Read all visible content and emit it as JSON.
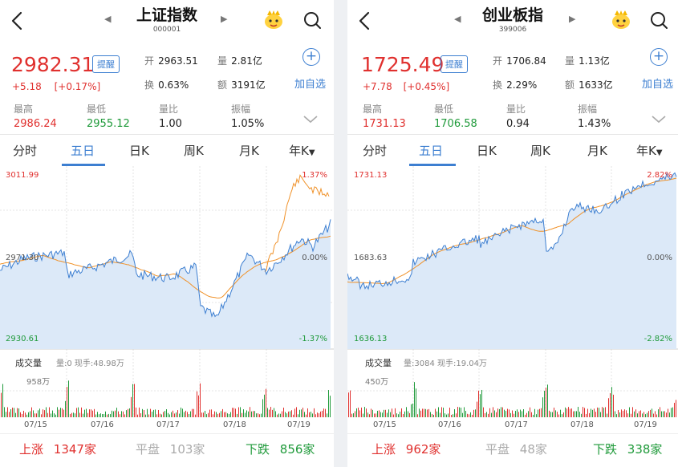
{
  "panels": [
    {
      "id": "sh",
      "title": "上证指数",
      "code": "000001",
      "price": "2982.31",
      "alert": "提醒",
      "change": "+5.18",
      "change_pct": "[+0.17%]",
      "stats": [
        {
          "k": "开",
          "v": "2963.51"
        },
        {
          "k": "量",
          "v": "2.81亿"
        },
        {
          "k": "换",
          "v": "0.63%"
        },
        {
          "k": "额",
          "v": "3191亿"
        }
      ],
      "add": "加自选",
      "plus": "+",
      "lows": [
        {
          "k": "最高",
          "v": "2986.24"
        },
        {
          "k": "最低",
          "v": "2955.12"
        },
        {
          "k": "量比",
          "v": "1.00"
        },
        {
          "k": "振幅",
          "v": "1.05%"
        }
      ],
      "tabs": [
        "分时",
        "五日",
        "日K",
        "周K",
        "月K",
        "年K"
      ],
      "active_tab": 1,
      "chart": {
        "y_max": "3011.99",
        "y_mid": "2971.30",
        "y_min": "2930.61",
        "pct_top": "1.37%",
        "pct_mid": "0.00%",
        "pct_bot": "-1.37%",
        "dates": [
          "07/15",
          "07/16",
          "07/17",
          "07/18",
          "07/19"
        ],
        "vol_max": "958万"
      },
      "vol_label": "成交量",
      "vol_info": "量:0 现手:48.98万",
      "breadth": {
        "up_k": "上涨",
        "up_v": "1347家",
        "flat_k": "平盘",
        "flat_v": "103家",
        "down_k": "下跌",
        "down_v": "856家"
      }
    },
    {
      "id": "cy",
      "title": "创业板指",
      "code": "399006",
      "price": "1725.49",
      "alert": "提醒",
      "change": "+7.78",
      "change_pct": "[+0.45%]",
      "stats": [
        {
          "k": "开",
          "v": "1706.84"
        },
        {
          "k": "量",
          "v": "1.13亿"
        },
        {
          "k": "换",
          "v": "2.29%"
        },
        {
          "k": "额",
          "v": "1633亿"
        }
      ],
      "add": "加自选",
      "plus": "+",
      "lows": [
        {
          "k": "最高",
          "v": "1731.13"
        },
        {
          "k": "最低",
          "v": "1706.58"
        },
        {
          "k": "量比",
          "v": "0.94"
        },
        {
          "k": "振幅",
          "v": "1.43%"
        }
      ],
      "tabs": [
        "分时",
        "五日",
        "日K",
        "周K",
        "月K",
        "年K"
      ],
      "active_tab": 1,
      "chart": {
        "y_max": "1731.13",
        "y_mid": "1683.63",
        "y_min": "1636.13",
        "pct_top": "2.82%",
        "pct_mid": "0.00%",
        "pct_bot": "-2.82%",
        "dates": [
          "07/15",
          "07/16",
          "07/17",
          "07/18",
          "07/19"
        ],
        "vol_max": "450万"
      },
      "vol_label": "成交量",
      "vol_info": "量:3084 现手:19.04万",
      "breadth": {
        "up_k": "上涨",
        "up_v": "962家",
        "flat_k": "平盘",
        "flat_v": "48家",
        "down_k": "下跌",
        "down_v": "338家"
      }
    }
  ],
  "colors": {
    "red": "#e0302e",
    "green": "#1f9a3a",
    "blue": "#3d7fd1",
    "orange": "#f0922a",
    "fill": "#dce9f8"
  },
  "icons": [
    "back-icon",
    "prev-arrow-icon",
    "next-arrow-icon",
    "mascot-icon",
    "search-icon",
    "plus-circle-icon",
    "chevron-down-icon",
    "dropdown-triangle-icon"
  ]
}
